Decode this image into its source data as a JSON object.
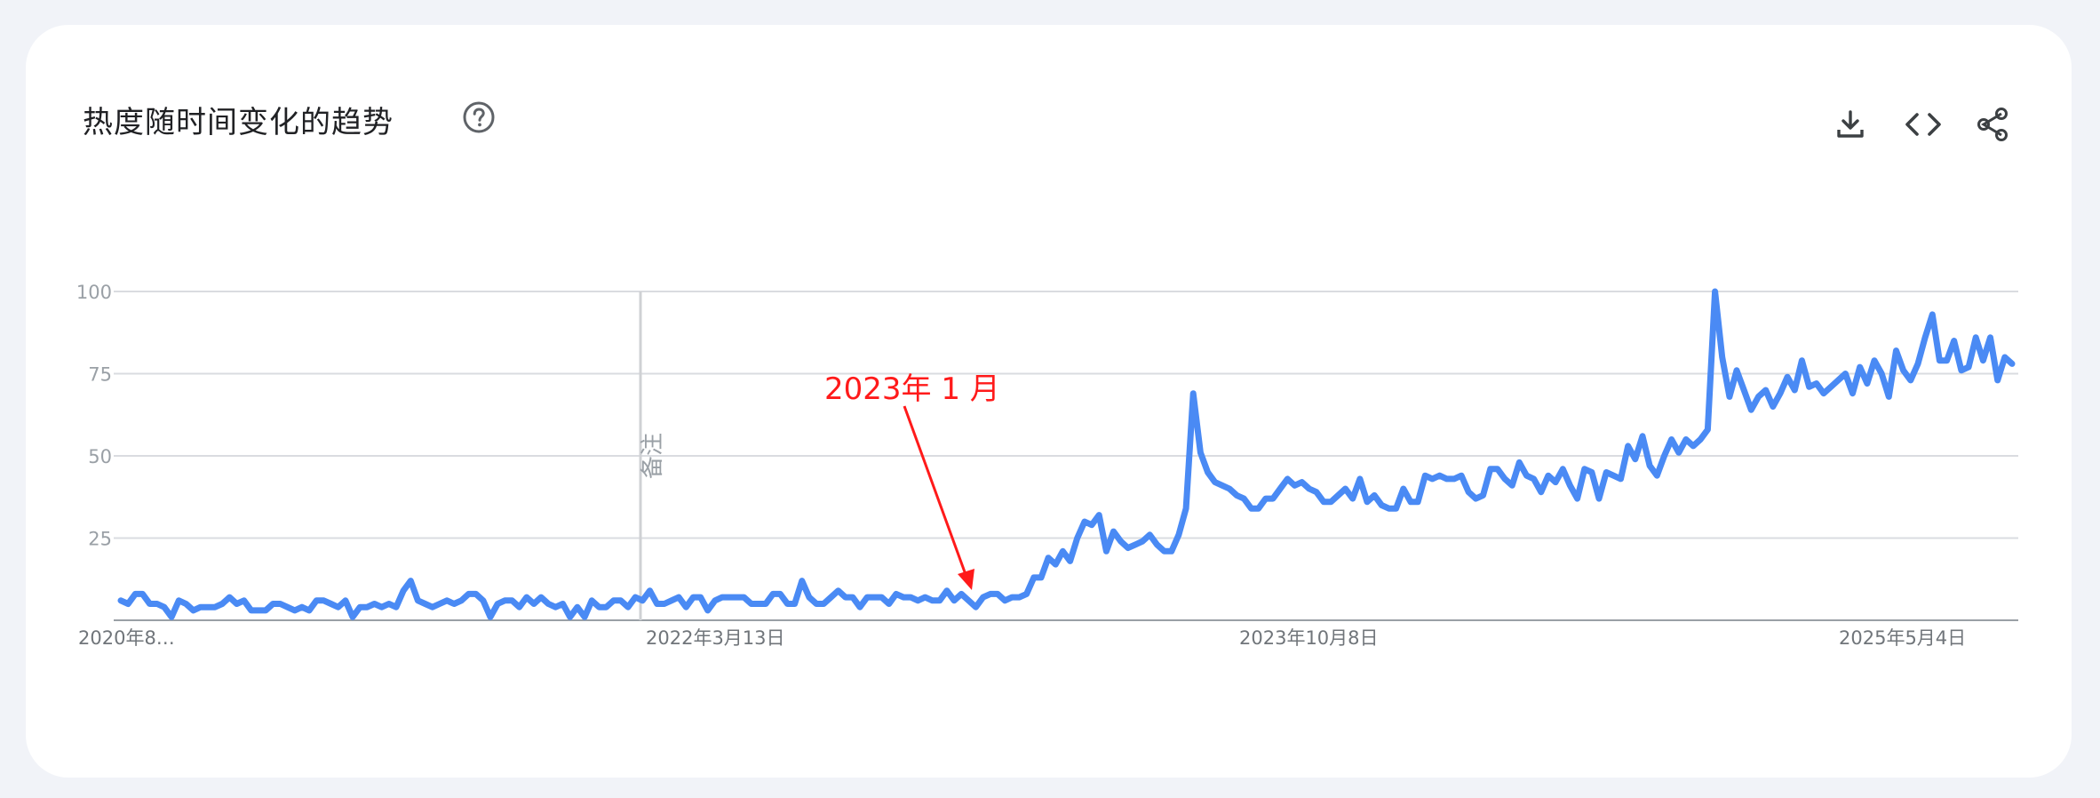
{
  "header": {
    "title": "热度随时间变化的趋势",
    "icons": {
      "help": "help-circle-icon",
      "download": "download-icon",
      "embed": "code-icon",
      "share": "share-icon"
    }
  },
  "chart_data": {
    "type": "line",
    "title": "热度随时间变化的趋势",
    "xlabel": "",
    "ylabel": "",
    "ylim": [
      0,
      100
    ],
    "y_ticks": [
      25,
      50,
      75,
      100
    ],
    "x_tick_labels": [
      "2020年8…",
      "2022年3月13日",
      "2023年10月8日",
      "2025年5月4日"
    ],
    "grid": true,
    "line_color": "#4a8af4",
    "note_marker": {
      "label": "备注",
      "date": "2022年3月13日"
    },
    "annotation": {
      "text": "2023年 1 月",
      "color": "#ff1a1a"
    },
    "series": [
      {
        "values": [
          6,
          5,
          8,
          8,
          5,
          5,
          4,
          1,
          6,
          5,
          3,
          4,
          4,
          4,
          5,
          7,
          5,
          6,
          3,
          3,
          3,
          5,
          5,
          4,
          3,
          4,
          3,
          6,
          6,
          5,
          4,
          6,
          1,
          4,
          4,
          5,
          4,
          5,
          4,
          9,
          12,
          6,
          5,
          4,
          5,
          6,
          5,
          6,
          8,
          8,
          6,
          1,
          5,
          6,
          6,
          4,
          7,
          5,
          7,
          5,
          4,
          5,
          1,
          4,
          1,
          6,
          4,
          4,
          6,
          6,
          4,
          7,
          6,
          9,
          5,
          5,
          6,
          7,
          4,
          7,
          7,
          3,
          6,
          7,
          7,
          7,
          7,
          5,
          5,
          5,
          8,
          8,
          5,
          5,
          12,
          7,
          5,
          5,
          7,
          9,
          7,
          7,
          4,
          7,
          7,
          7,
          5,
          8,
          7,
          7,
          6,
          7,
          6,
          6,
          9,
          6,
          8,
          6,
          4,
          7,
          8,
          8,
          6,
          7,
          7,
          8,
          13,
          13,
          19,
          17,
          21,
          18,
          25,
          30,
          29,
          32,
          21,
          27,
          24,
          22,
          23,
          24,
          26,
          23,
          21,
          21,
          26,
          34,
          69,
          51,
          45,
          42,
          41,
          40,
          38,
          37,
          34,
          34,
          37,
          37,
          40,
          43,
          41,
          42,
          40,
          39,
          36,
          36,
          38,
          40,
          37,
          43,
          36,
          38,
          35,
          34,
          34,
          40,
          36,
          36,
          44,
          43,
          44,
          43,
          43,
          44,
          39,
          37,
          38,
          46,
          46,
          43,
          41,
          48,
          44,
          43,
          39,
          44,
          42,
          46,
          41,
          37,
          46,
          45,
          37,
          45,
          44,
          43,
          53,
          49,
          56,
          47,
          44,
          50,
          55,
          51,
          55,
          53,
          55,
          58,
          100,
          80,
          68,
          76,
          70,
          64,
          68,
          70,
          65,
          69,
          74,
          70,
          79,
          71,
          72,
          69,
          71,
          73,
          75,
          69,
          77,
          72,
          79,
          75,
          68,
          82,
          76,
          73,
          78,
          86,
          93,
          79,
          79,
          85,
          76,
          77,
          86,
          79,
          86,
          73,
          80,
          78
        ]
      }
    ]
  }
}
